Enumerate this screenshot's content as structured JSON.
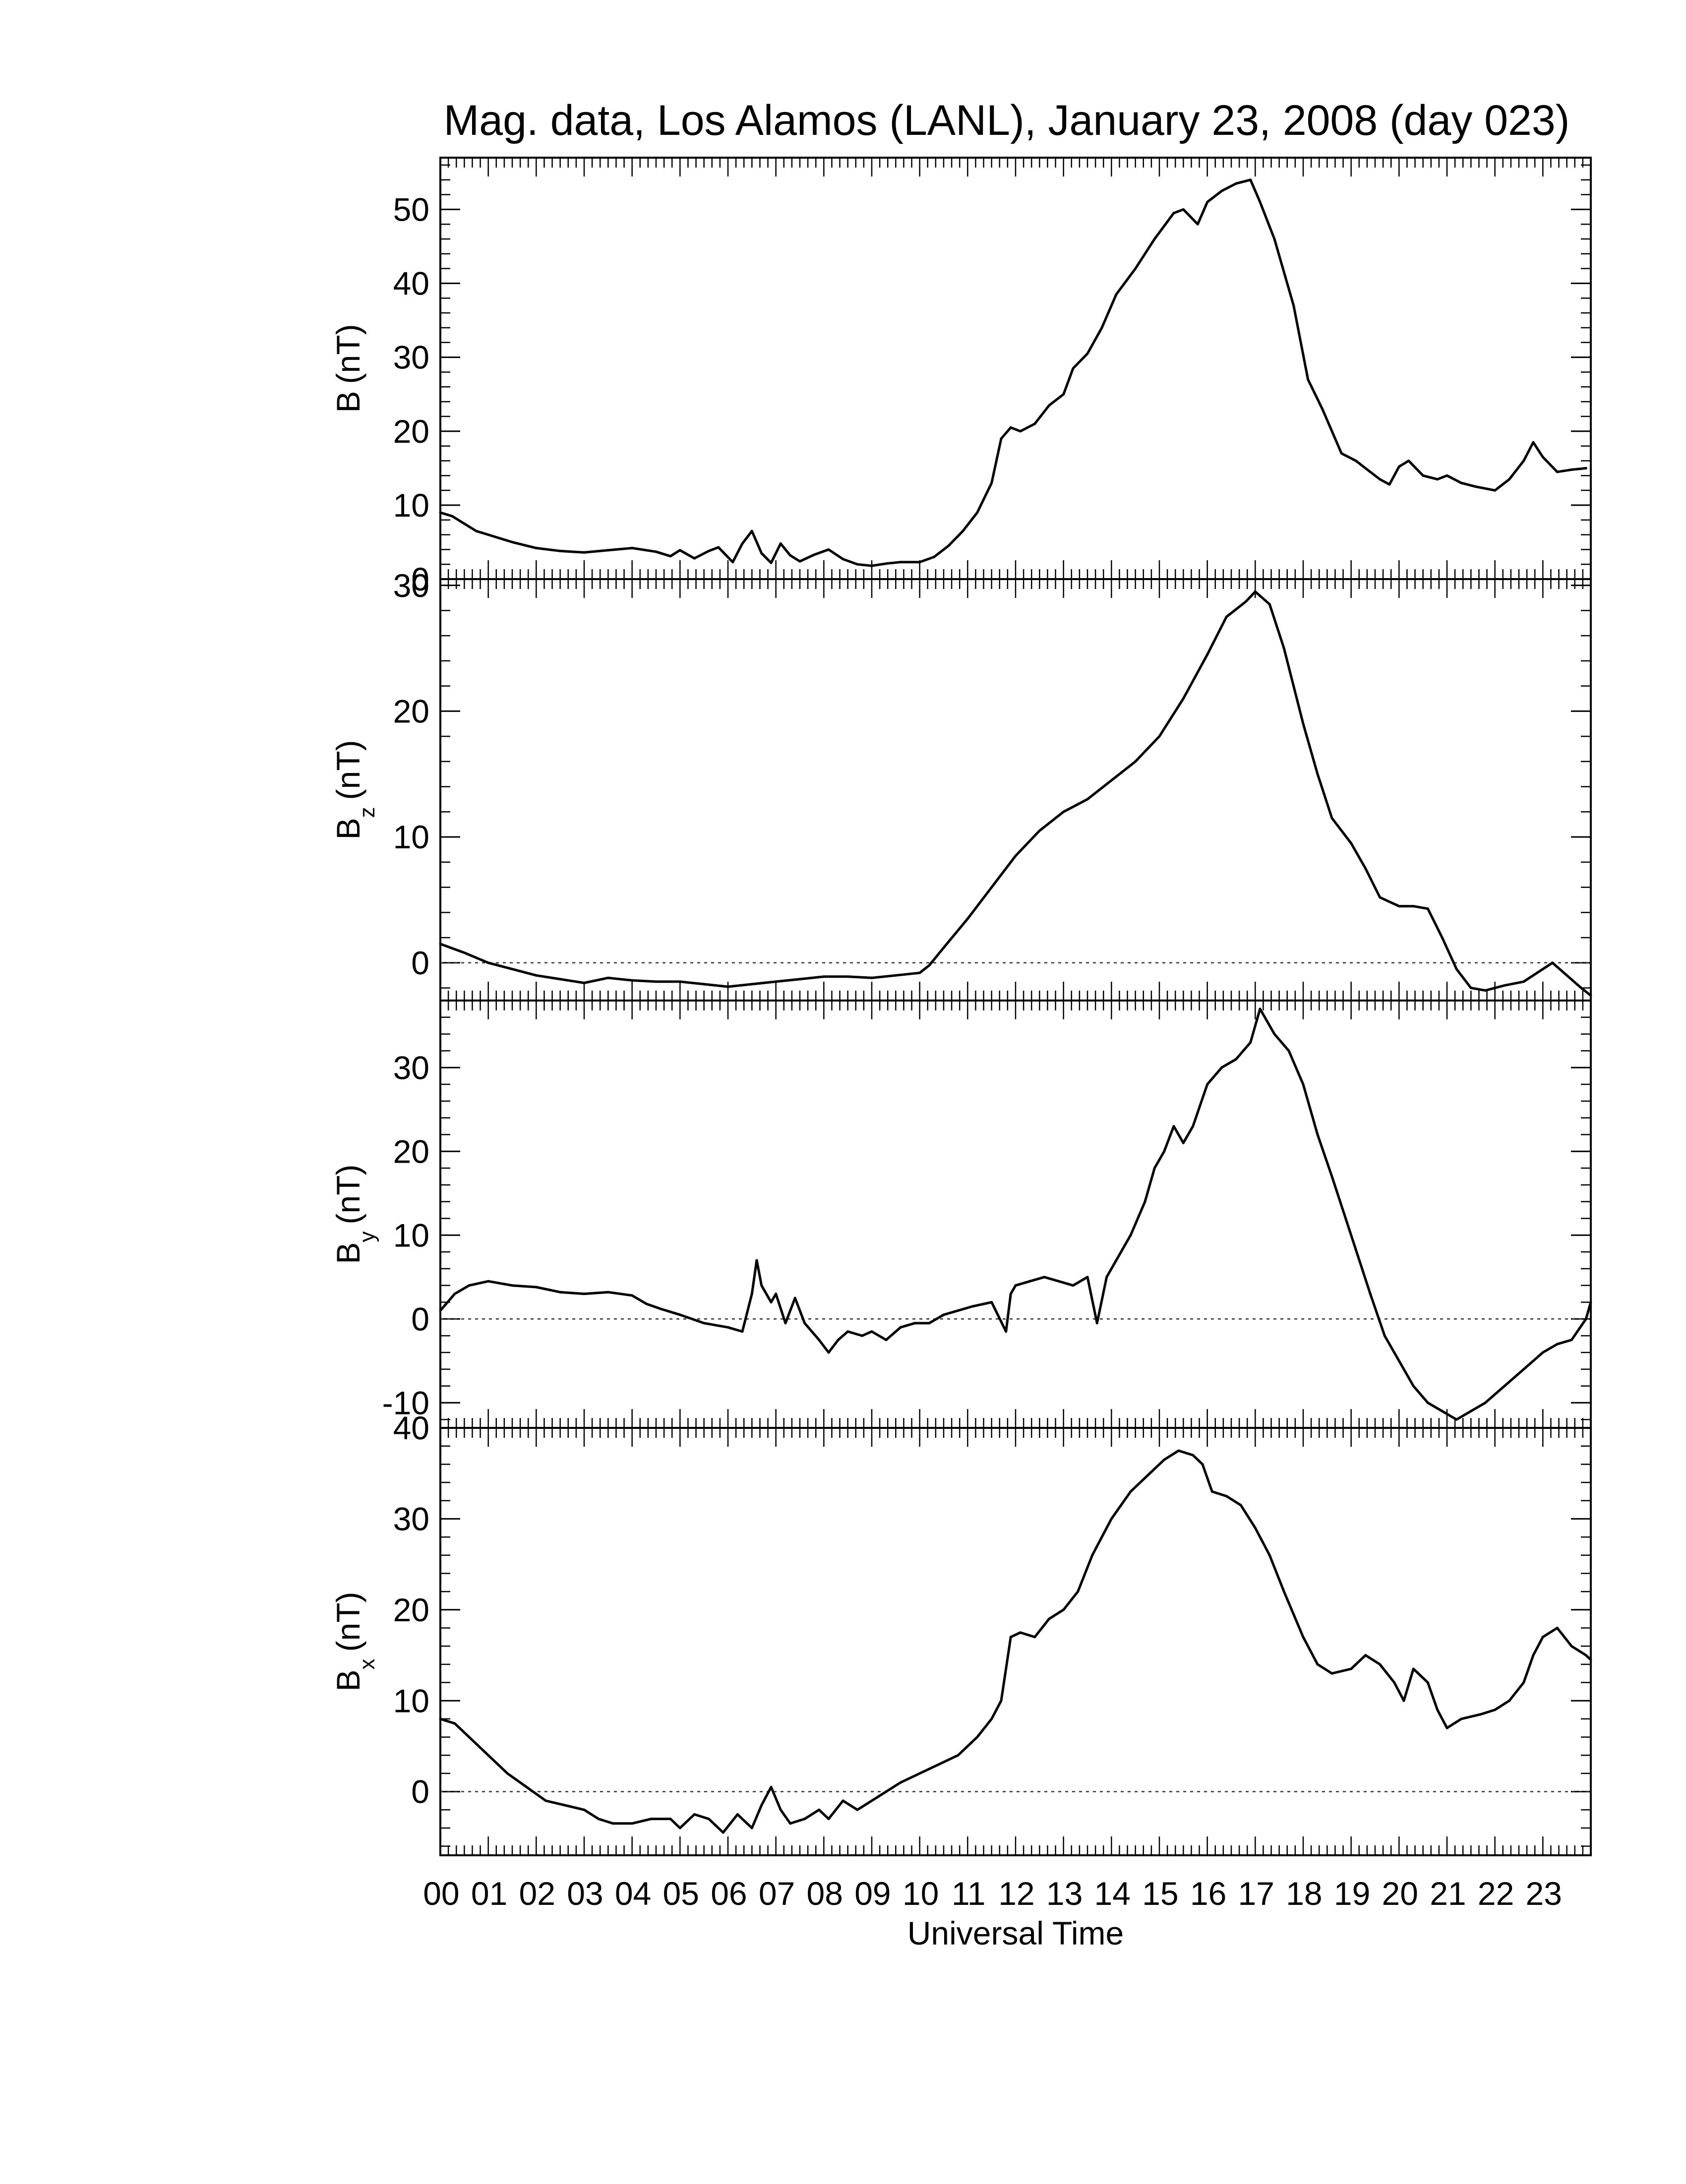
{
  "title": "Mag. data, Los Alamos (LANL), January 23, 2008 (day 023)",
  "colors": {
    "line": "#000000",
    "axis": "#000000",
    "zero_line": "#333333",
    "background": "#ffffff"
  },
  "chart_data": [
    {
      "type": "line",
      "ylabel": {
        "main": "B",
        "sub": "",
        "unit": "(nT)"
      },
      "ylim": [
        0,
        57
      ],
      "yticks": [
        0,
        10,
        20,
        30,
        40,
        50
      ],
      "zero_line": false,
      "series": [
        {
          "x": [
            0.0,
            0.25,
            0.5,
            0.75,
            1.0,
            1.5,
            2.0,
            2.5,
            3.0,
            3.5,
            4.0,
            4.5,
            4.8,
            5.0,
            5.3,
            5.6,
            5.8,
            6.1,
            6.3,
            6.5,
            6.7,
            6.9,
            7.1,
            7.3,
            7.5,
            7.8,
            8.1,
            8.4,
            8.7,
            9.0,
            9.3,
            9.6,
            10.0,
            10.3,
            10.6,
            10.9,
            11.2,
            11.5,
            11.7,
            11.9,
            12.1,
            12.4,
            12.7,
            13.0,
            13.2,
            13.5,
            13.8,
            14.1,
            14.5,
            14.9,
            15.3,
            15.5,
            15.8,
            16.0,
            16.3,
            16.6,
            16.9,
            17.1,
            17.4,
            17.8,
            18.1,
            18.4,
            18.8,
            19.1,
            19.4,
            19.6,
            19.8,
            20.0,
            20.2,
            20.5,
            20.8,
            21.0,
            21.3,
            21.6,
            22.0,
            22.3,
            22.6,
            22.8,
            23.0,
            23.3,
            23.6,
            23.9
          ],
          "y": [
            9,
            8.5,
            7.5,
            6.5,
            6,
            5,
            4.2,
            3.8,
            3.6,
            3.9,
            4.2,
            3.7,
            3.1,
            3.9,
            2.8,
            3.8,
            4.3,
            2.3,
            4.8,
            6.5,
            3.5,
            2.2,
            4.8,
            3.2,
            2.4,
            3.3,
            4,
            2.7,
            2,
            1.8,
            2.1,
            2.3,
            2.3,
            3,
            4.5,
            6.5,
            9,
            13,
            19,
            20.5,
            20,
            21,
            23.5,
            25,
            28.5,
            30.5,
            34,
            38.5,
            42,
            46,
            49.5,
            50,
            48,
            51,
            52.5,
            53.5,
            54,
            51,
            46,
            37,
            27,
            23,
            17,
            16,
            14.5,
            13.5,
            12.8,
            15.2,
            16,
            14,
            13.5,
            14,
            13,
            12.5,
            12,
            13.5,
            16,
            18.5,
            16.5,
            14.5,
            14.8,
            15
          ]
        }
      ]
    },
    {
      "type": "line",
      "ylabel": {
        "main": "B",
        "sub": "z",
        "unit": "(nT)"
      },
      "ylim": [
        -3,
        30.5
      ],
      "yticks": [
        0,
        10,
        20,
        30
      ],
      "zero_line": true,
      "series": [
        {
          "x": [
            0.0,
            0.5,
            1.0,
            1.5,
            2.0,
            2.5,
            3.0,
            3.5,
            4.0,
            4.5,
            5.0,
            5.5,
            6.0,
            6.5,
            7.0,
            7.5,
            8.0,
            8.5,
            9.0,
            9.5,
            10.0,
            10.2,
            10.5,
            11.0,
            11.5,
            12.0,
            12.5,
            13.0,
            13.5,
            14.0,
            14.5,
            15.0,
            15.5,
            16.0,
            16.4,
            16.8,
            17.0,
            17.3,
            17.6,
            18.0,
            18.3,
            18.6,
            19.0,
            19.3,
            19.6,
            20.0,
            20.3,
            20.6,
            20.9,
            21.2,
            21.5,
            21.8,
            22.2,
            22.6,
            23.0,
            23.2,
            23.5,
            23.8,
            24.0
          ],
          "y": [
            1.5,
            0.8,
            0,
            -0.5,
            -1,
            -1.3,
            -1.6,
            -1.2,
            -1.4,
            -1.5,
            -1.5,
            -1.7,
            -1.9,
            -1.7,
            -1.5,
            -1.3,
            -1.1,
            -1.1,
            -1.2,
            -1,
            -0.8,
            -0.2,
            1.2,
            3.5,
            6,
            8.5,
            10.5,
            12,
            13,
            14.5,
            16,
            18,
            21,
            24.5,
            27.5,
            28.7,
            29.5,
            28.5,
            25,
            19,
            15,
            11.5,
            9.5,
            7.5,
            5.2,
            4.5,
            4.5,
            4.3,
            2,
            -0.5,
            -2,
            -2.2,
            -1.8,
            -1.5,
            -0.5,
            0,
            -1,
            -2,
            -2.6
          ]
        }
      ]
    },
    {
      "type": "line",
      "ylabel": {
        "main": "B",
        "sub": "y",
        "unit": "(nT)"
      },
      "ylim": [
        -13,
        38
      ],
      "yticks": [
        -10,
        0,
        10,
        20,
        30
      ],
      "zero_line": true,
      "series": [
        {
          "x": [
            0.0,
            0.3,
            0.6,
            1.0,
            1.5,
            2.0,
            2.5,
            3.0,
            3.5,
            4.0,
            4.3,
            4.6,
            5.0,
            5.5,
            6.0,
            6.3,
            6.5,
            6.6,
            6.7,
            6.9,
            7.0,
            7.2,
            7.4,
            7.6,
            7.9,
            8.1,
            8.3,
            8.5,
            8.8,
            9.0,
            9.3,
            9.6,
            9.9,
            10.2,
            10.5,
            10.8,
            11.1,
            11.5,
            11.8,
            11.9,
            12.0,
            12.3,
            12.6,
            12.9,
            13.2,
            13.5,
            13.7,
            13.9,
            14.1,
            14.4,
            14.7,
            14.9,
            15.1,
            15.3,
            15.5,
            15.7,
            16.0,
            16.3,
            16.6,
            16.9,
            17.1,
            17.4,
            17.7,
            18.0,
            18.3,
            18.6,
            19.0,
            19.4,
            19.7,
            20.0,
            20.3,
            20.6,
            20.9,
            21.2,
            21.5,
            21.8,
            22.2,
            22.6,
            23.0,
            23.3,
            23.6,
            23.9,
            24.0
          ],
          "y": [
            1,
            3,
            4,
            4.5,
            4,
            3.8,
            3.2,
            3,
            3.2,
            2.8,
            1.8,
            1.2,
            0.5,
            -0.5,
            -1,
            -1.5,
            3,
            7,
            4,
            2,
            3,
            -0.5,
            2.5,
            -0.5,
            -2.5,
            -4,
            -2.5,
            -1.5,
            -2,
            -1.5,
            -2.5,
            -1,
            -0.5,
            -0.5,
            0.5,
            1,
            1.5,
            2,
            -1.5,
            3,
            4,
            4.5,
            5,
            4.5,
            4,
            5,
            -0.5,
            5,
            7,
            10,
            14,
            18,
            20,
            23,
            21,
            23,
            28,
            30,
            31,
            33,
            37,
            34,
            32,
            28,
            22,
            17,
            10,
            3,
            -2,
            -5,
            -8,
            -10,
            -11,
            -12,
            -11,
            -10,
            -8,
            -6,
            -4,
            -3,
            -2.5,
            0,
            2
          ]
        }
      ]
    },
    {
      "type": "line",
      "ylabel": {
        "main": "B",
        "sub": "x",
        "unit": "(nT)"
      },
      "ylim": [
        -7,
        40
      ],
      "yticks": [
        0,
        10,
        20,
        30,
        40
      ],
      "zero_line": true,
      "series": [
        {
          "x": [
            0.0,
            0.3,
            0.6,
            1.0,
            1.4,
            1.8,
            2.2,
            2.6,
            3.0,
            3.3,
            3.6,
            4.0,
            4.4,
            4.8,
            5.0,
            5.3,
            5.6,
            5.9,
            6.2,
            6.5,
            6.7,
            6.9,
            7.1,
            7.3,
            7.6,
            7.9,
            8.1,
            8.4,
            8.7,
            9.0,
            9.3,
            9.6,
            10.0,
            10.4,
            10.8,
            11.2,
            11.5,
            11.7,
            11.9,
            12.1,
            12.4,
            12.7,
            13.0,
            13.3,
            13.6,
            14.0,
            14.4,
            14.8,
            15.1,
            15.4,
            15.7,
            15.9,
            16.1,
            16.4,
            16.7,
            17.0,
            17.3,
            17.6,
            18.0,
            18.3,
            18.6,
            19.0,
            19.3,
            19.6,
            19.9,
            20.1,
            20.3,
            20.6,
            20.8,
            21.0,
            21.3,
            21.7,
            22.0,
            22.3,
            22.6,
            22.8,
            23.0,
            23.3,
            23.6,
            23.9,
            24.0
          ],
          "y": [
            8,
            7.5,
            6,
            4,
            2,
            0.5,
            -1,
            -1.5,
            -2,
            -3,
            -3.5,
            -3.5,
            -3,
            -3,
            -4,
            -2.5,
            -3,
            -4.5,
            -2.5,
            -4,
            -1.5,
            0.5,
            -2,
            -3.5,
            -3,
            -2,
            -3,
            -1,
            -2,
            -1,
            0,
            1,
            2,
            3,
            4,
            6,
            8,
            10,
            17,
            17.5,
            17,
            19,
            20,
            22,
            26,
            30,
            33,
            35,
            36.5,
            37.5,
            37,
            36,
            33,
            32.5,
            31.5,
            29,
            26,
            22,
            17,
            14,
            13,
            13.5,
            15,
            14,
            12,
            10,
            13.5,
            12,
            9,
            7,
            8,
            8.5,
            9,
            10,
            12,
            15,
            17,
            18,
            16,
            15,
            14.5
          ]
        }
      ]
    }
  ],
  "x_axis": {
    "label": "Universal Time",
    "xlim": [
      0,
      24
    ],
    "tick_labels": [
      "00",
      "01",
      "02",
      "03",
      "04",
      "05",
      "06",
      "07",
      "08",
      "09",
      "10",
      "11",
      "12",
      "13",
      "14",
      "15",
      "16",
      "17",
      "18",
      "19",
      "20",
      "21",
      "22",
      "23"
    ]
  }
}
